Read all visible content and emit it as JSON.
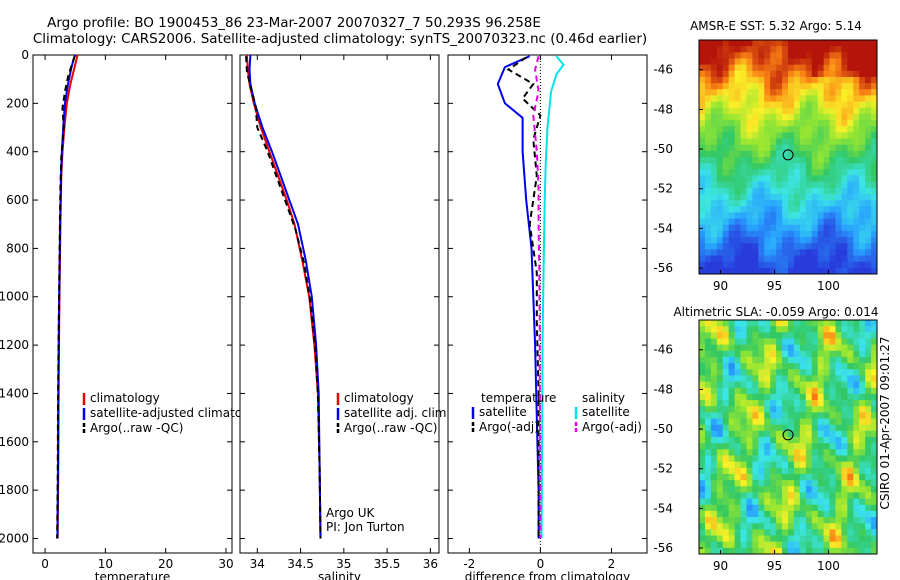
{
  "header": {
    "title_line1": "Argo profile: BO 1900453_86 23-Mar-2007 20070327_7 50.293S 96.258E",
    "title_line2": "Climatology: CARS2006. Satellite-adjusted climatology: synTS_20070323.nc (0.46d earlier)"
  },
  "credit": "CSIRO 01-Apr-2007 09:01:27",
  "colors": {
    "climatology": "#e60000",
    "satellite": "#0000ee",
    "argo": "#000000",
    "sal_satellite": "#00e6e6",
    "sal_argo": "#e600e6"
  },
  "chart_data": [
    {
      "type": "line",
      "id": "temperature",
      "xlabel": "temperature",
      "ylabel": "",
      "xlim": [
        -2,
        31
      ],
      "ylim": [
        2060,
        0
      ],
      "y_reversed": true,
      "xticks": [
        0,
        10,
        20,
        30
      ],
      "yticks": [
        0,
        200,
        400,
        600,
        800,
        1000,
        1200,
        1400,
        1600,
        1800,
        2000
      ],
      "legend": [
        "climatology",
        "satellite-adjusted climatology",
        "Argo(..raw -QC)"
      ],
      "legend_location": "lower-right",
      "series": [
        {
          "name": "climatology",
          "color_key": "climatology",
          "dash": "solid",
          "x": [
            5.4,
            5.2,
            4.8,
            4.2,
            3.6,
            3.2,
            2.9,
            2.7,
            2.55,
            2.45,
            2.35,
            2.25,
            2.2,
            2.1
          ],
          "y": [
            0,
            20,
            60,
            120,
            200,
            300,
            400,
            500,
            700,
            900,
            1100,
            1400,
            1700,
            2000
          ]
        },
        {
          "name": "satellite-adjusted climatology",
          "color_key": "satellite",
          "dash": "solid",
          "x": [
            5.0,
            4.7,
            4.3,
            3.8,
            3.3,
            3.0,
            2.8,
            2.65,
            2.5,
            2.4,
            2.3,
            2.2,
            2.15,
            2.05
          ],
          "y": [
            0,
            20,
            60,
            120,
            200,
            300,
            400,
            500,
            700,
            900,
            1100,
            1400,
            1700,
            2000
          ]
        },
        {
          "name": "Argo(..raw -QC)",
          "color_key": "argo",
          "dash": "dashed",
          "x": [
            4.9,
            4.6,
            3.9,
            3.3,
            2.9,
            3.1,
            2.7,
            2.55,
            2.45,
            2.35,
            2.25,
            2.15,
            2.1,
            2.0
          ],
          "y": [
            5,
            30,
            80,
            150,
            220,
            300,
            420,
            550,
            750,
            950,
            1150,
            1450,
            1750,
            2000
          ]
        }
      ]
    },
    {
      "type": "line",
      "id": "salinity",
      "xlabel": "salinity",
      "ylabel": "",
      "xlim": [
        33.8,
        36.1
      ],
      "ylim": [
        2060,
        0
      ],
      "y_reversed": true,
      "xticks": [
        34,
        34.5,
        35,
        35.5,
        36
      ],
      "xticklabels": [
        "34",
        "34.5",
        "35",
        "35.5",
        "36"
      ],
      "legend": [
        "climatology",
        "satellite adj. clim.",
        "Argo(..raw -QC)"
      ],
      "legend_location": "lower-right",
      "annotation": [
        "Argo UK",
        "PI: Jon Turton"
      ],
      "series": [
        {
          "name": "climatology",
          "color_key": "climatology",
          "dash": "solid",
          "x": [
            33.88,
            33.89,
            33.91,
            33.96,
            34.04,
            34.14,
            34.24,
            34.34,
            34.43,
            34.52,
            34.6,
            34.66,
            34.7,
            34.72,
            34.73
          ],
          "y": [
            0,
            60,
            120,
            200,
            300,
            400,
            500,
            600,
            700,
            850,
            1000,
            1200,
            1400,
            1700,
            2000
          ]
        },
        {
          "name": "satellite adj. clim.",
          "color_key": "satellite",
          "dash": "solid",
          "x": [
            33.92,
            33.91,
            33.92,
            33.97,
            34.06,
            34.17,
            34.27,
            34.37,
            34.47,
            34.56,
            34.63,
            34.68,
            34.71,
            34.72,
            34.73
          ],
          "y": [
            0,
            60,
            120,
            200,
            300,
            400,
            500,
            600,
            700,
            850,
            1000,
            1200,
            1400,
            1700,
            2000
          ]
        },
        {
          "name": "Argo(..raw -QC)",
          "color_key": "argo",
          "dash": "dashed",
          "x": [
            33.87,
            33.88,
            33.93,
            33.98,
            34.0,
            34.12,
            34.22,
            34.33,
            34.44,
            34.54,
            34.61,
            34.67,
            34.7,
            34.72,
            34.73
          ],
          "y": [
            5,
            70,
            140,
            210,
            300,
            400,
            500,
            610,
            720,
            860,
            1010,
            1210,
            1410,
            1710,
            2000
          ]
        }
      ]
    },
    {
      "type": "line",
      "id": "difference",
      "xlabel": "difference from climatology",
      "ylabel": "",
      "xlim": [
        -2.6,
        3.0
      ],
      "ylim": [
        2060,
        0
      ],
      "y_reversed": true,
      "xticks": [
        -2,
        0,
        2
      ],
      "legend_columns": [
        {
          "heading": "temperature",
          "entries": [
            "satellite",
            "Argo(-adj)"
          ]
        },
        {
          "heading": "salinity",
          "entries": [
            "satellite",
            "Argo(-adj)"
          ]
        }
      ],
      "legend_location": "lower-right",
      "zero_line": true,
      "series": [
        {
          "name": "temperature satellite",
          "color_key": "satellite",
          "dash": "solid",
          "x": [
            -0.3,
            -1.0,
            -1.2,
            -1.0,
            -0.5,
            -0.5,
            -0.4,
            -0.25,
            -0.2,
            -0.15,
            -0.1,
            -0.05,
            -0.05
          ],
          "y": [
            5,
            50,
            120,
            200,
            260,
            400,
            600,
            800,
            1000,
            1200,
            1500,
            1800,
            2000
          ]
        },
        {
          "name": "temperature Argo(-adj)",
          "color_key": "argo",
          "dash": "dashed",
          "x": [
            -0.4,
            -0.9,
            -0.2,
            -0.5,
            0.0,
            -0.2,
            -0.1,
            -0.3,
            -0.1,
            -0.1,
            -0.05,
            -0.05,
            -0.05
          ],
          "y": [
            10,
            60,
            120,
            180,
            250,
            350,
            500,
            700,
            900,
            1100,
            1400,
            1700,
            2000
          ]
        },
        {
          "name": "salinity satellite",
          "color_key": "sal_satellite",
          "dash": "solid",
          "x": [
            0.45,
            0.65,
            0.45,
            0.3,
            0.2,
            0.15,
            0.12,
            0.1,
            0.08,
            0.06,
            0.05,
            0.04,
            0.03
          ],
          "y": [
            5,
            40,
            80,
            150,
            300,
            450,
            600,
            800,
            1000,
            1200,
            1500,
            1800,
            2000
          ]
        },
        {
          "name": "salinity Argo(-adj)",
          "color_key": "sal_argo",
          "dash": "dashed",
          "x": [
            -0.05,
            -0.15,
            -0.05,
            -0.2,
            -0.1,
            -0.05,
            -0.05,
            -0.03,
            -0.02,
            -0.02,
            -0.01,
            0.0,
            0.0
          ],
          "y": [
            5,
            60,
            150,
            250,
            400,
            550,
            700,
            900,
            1100,
            1300,
            1500,
            1800,
            2000
          ]
        }
      ]
    },
    {
      "type": "heatmap",
      "id": "sst_map",
      "title": "AMSR-E SST: 5.32 Argo: 5.14",
      "xlim": [
        88,
        104.5
      ],
      "ylim": [
        -56.3,
        -44.5
      ],
      "xticks": [
        90,
        95,
        100
      ],
      "yticks": [
        -46,
        -48,
        -50,
        -52,
        -54,
        -56
      ],
      "marker": {
        "lon": 96.258,
        "lat": -50.293
      }
    },
    {
      "type": "heatmap",
      "id": "sla_map",
      "title": "Altimetric SLA: -0.059 Argo: 0.014",
      "xlim": [
        88,
        104.5
      ],
      "ylim": [
        -56.3,
        -44.5
      ],
      "xticks": [
        90,
        95,
        100
      ],
      "yticks": [
        -46,
        -48,
        -50,
        -52,
        -54,
        -56
      ],
      "marker": {
        "lon": 96.258,
        "lat": -50.293
      }
    }
  ]
}
